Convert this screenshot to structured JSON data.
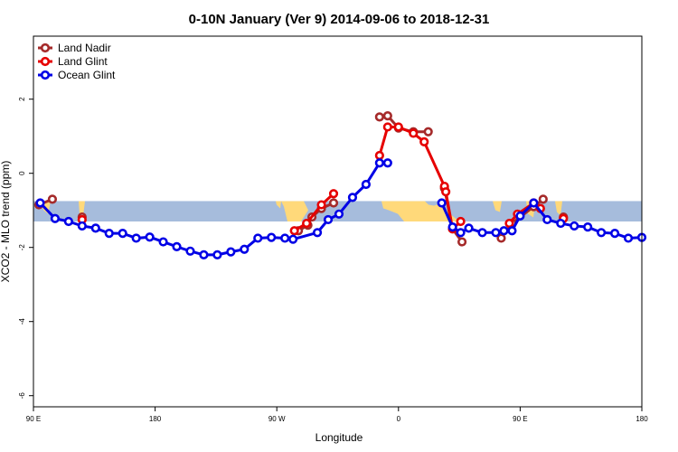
{
  "chart_data": {
    "type": "line",
    "title": "0-10N January (Ver 9)   2014-09-06 to 2018-12-31",
    "xlabel": "Longitude",
    "ylabel": "XCO2 - MLO trend (ppm)",
    "x_axis": {
      "unwrapped_range": [
        90,
        450
      ],
      "ticks": [
        {
          "value": 90,
          "label": "90 E"
        },
        {
          "value": 180,
          "label": "180"
        },
        {
          "value": 270,
          "label": "90 W"
        },
        {
          "value": 360,
          "label": "0"
        },
        {
          "value": 450,
          "label": "90 E"
        },
        {
          "value": 540,
          "label": "180"
        }
      ],
      "lim": [
        90,
        540
      ]
    },
    "y_axis": {
      "lim": [
        -6.3,
        3.7
      ],
      "ticks": [
        {
          "value": -6,
          "label": "-6"
        },
        {
          "value": -4,
          "label": "-4"
        },
        {
          "value": -2,
          "label": "-2"
        },
        {
          "value": 0,
          "label": "0"
        },
        {
          "value": 2,
          "label": "2"
        }
      ]
    },
    "grid": false,
    "legend_position": "top-left",
    "map_band": {
      "ymin": -1.3,
      "ymax": -0.75,
      "ocean_color": "#a6bcdc",
      "land_color": "#ffd97a"
    },
    "series": [
      {
        "name": "Land Nadir",
        "color": "#a52a2a",
        "segments": [
          [
            [
              94,
              -0.85
            ],
            [
              104,
              -0.7
            ]
          ],
          [
            [
              126,
              -1.18
            ]
          ],
          [
            [
              286,
              -1.55
            ],
            [
              293,
              -1.4
            ],
            [
              296,
              -1.18
            ],
            [
              303,
              -0.95
            ],
            [
              312,
              -0.8
            ]
          ],
          [
            [
              346,
              1.52
            ],
            [
              352,
              1.55
            ],
            [
              360,
              1.22
            ],
            [
              371,
              1.12
            ],
            [
              382,
              1.12
            ]
          ],
          [
            [
              394,
              -0.4
            ],
            [
              400,
              -1.5
            ],
            [
              407,
              -1.85
            ]
          ],
          [
            [
              436,
              -1.75
            ],
            [
              444,
              -1.35
            ],
            [
              460,
              -0.9
            ],
            [
              467,
              -0.7
            ]
          ],
          [
            [
              482,
              -1.18
            ]
          ]
        ]
      },
      {
        "name": "Land Glint",
        "color": "#e60000",
        "segments": [
          [
            [
              126,
              -1.25
            ]
          ],
          [
            [
              283,
              -1.55
            ],
            [
              292,
              -1.35
            ],
            [
              303,
              -0.85
            ],
            [
              312,
              -0.55
            ]
          ],
          [
            [
              346,
              0.48
            ],
            [
              352,
              1.25
            ],
            [
              360,
              1.25
            ],
            [
              371,
              1.08
            ],
            [
              379,
              0.85
            ],
            [
              394,
              -0.35
            ],
            [
              395,
              -0.5
            ],
            [
              400,
              -1.5
            ],
            [
              406,
              -1.3
            ]
          ],
          [
            [
              442,
              -1.35
            ],
            [
              448,
              -1.1
            ],
            [
              460,
              -0.8
            ],
            [
              465,
              -0.95
            ]
          ],
          [
            [
              482,
              -1.22
            ]
          ]
        ]
      },
      {
        "name": "Ocean Glint",
        "color": "#0000e6",
        "segments": [
          [
            [
              95,
              -0.8
            ],
            [
              106,
              -1.22
            ],
            [
              116,
              -1.3
            ],
            [
              126,
              -1.42
            ],
            [
              136,
              -1.48
            ],
            [
              146,
              -1.62
            ],
            [
              156,
              -1.62
            ],
            [
              166,
              -1.75
            ],
            [
              176,
              -1.72
            ],
            [
              186,
              -1.85
            ],
            [
              196,
              -1.98
            ],
            [
              206,
              -2.1
            ],
            [
              216,
              -2.2
            ],
            [
              226,
              -2.2
            ],
            [
              236,
              -2.12
            ],
            [
              246,
              -2.05
            ],
            [
              256,
              -1.75
            ],
            [
              266,
              -1.73
            ],
            [
              276,
              -1.75
            ],
            [
              282,
              -1.78
            ],
            [
              300,
              -1.6
            ],
            [
              308,
              -1.25
            ],
            [
              316,
              -1.1
            ],
            [
              326,
              -0.65
            ],
            [
              336,
              -0.3
            ],
            [
              346,
              0.28
            ],
            [
              352,
              0.28
            ]
          ],
          [
            [
              392,
              -0.8
            ],
            [
              400,
              -1.45
            ],
            [
              406,
              -1.6
            ],
            [
              412,
              -1.48
            ],
            [
              422,
              -1.6
            ],
            [
              432,
              -1.6
            ],
            [
              438,
              -1.55
            ],
            [
              444,
              -1.55
            ],
            [
              450,
              -1.15
            ],
            [
              460,
              -0.8
            ],
            [
              470,
              -1.25
            ],
            [
              480,
              -1.35
            ],
            [
              490,
              -1.42
            ],
            [
              500,
              -1.45
            ],
            [
              510,
              -1.6
            ],
            [
              520,
              -1.62
            ],
            [
              530,
              -1.75
            ],
            [
              540,
              -1.73
            ]
          ]
        ]
      }
    ]
  }
}
